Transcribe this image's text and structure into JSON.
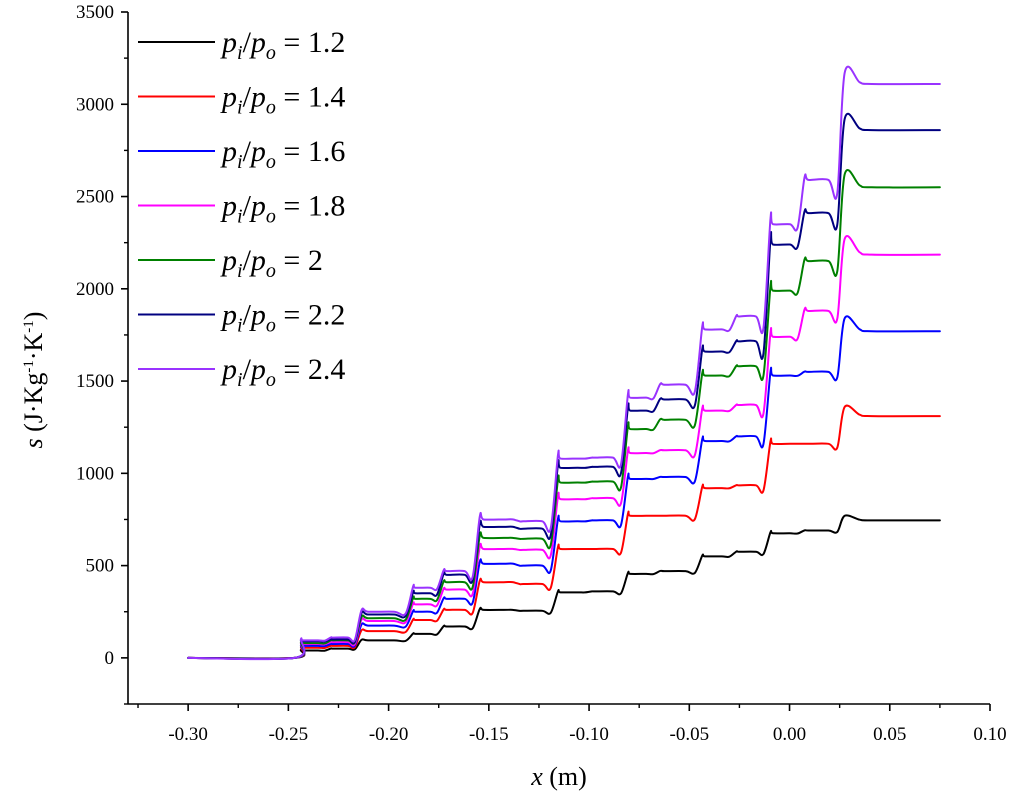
{
  "chart_data": {
    "type": "line",
    "xlabel": {
      "var": "x",
      "unit": "(m)"
    },
    "ylabel": {
      "var": "s",
      "unit_parts": [
        "(J·Kg",
        "-1",
        "·K",
        "-1",
        ")"
      ]
    },
    "xlim": [
      -0.33,
      0.1
    ],
    "ylim": [
      -250,
      3500
    ],
    "xticks": [
      -0.3,
      -0.25,
      -0.2,
      -0.15,
      -0.1,
      -0.05,
      0.0,
      0.05,
      0.1
    ],
    "xtick_labels": [
      "-0.30",
      "-0.25",
      "-0.20",
      "-0.15",
      "-0.10",
      "-0.05",
      "0.00",
      "0.05",
      "0.10"
    ],
    "yticks": [
      0,
      500,
      1000,
      1500,
      2000,
      2500,
      3000,
      3500
    ],
    "ytick_labels": [
      "0",
      "500",
      "1000",
      "1500",
      "2000",
      "2500",
      "3000",
      "3500"
    ],
    "grid": false,
    "legend_position": "top-left",
    "x_domain": [
      -0.3,
      0.075
    ],
    "steps": [
      {
        "xs": -0.246,
        "xe": -0.231,
        "dip": 0.45
      },
      {
        "xs": -0.231,
        "xe": -0.216,
        "dip": 0.35
      },
      {
        "xs": -0.216,
        "xe": -0.19,
        "dip": 0.3
      },
      {
        "xs": -0.19,
        "xe": -0.175,
        "dip": 0.3
      },
      {
        "xs": -0.175,
        "xe": -0.157,
        "dip": 0.4
      },
      {
        "xs": -0.157,
        "xe": -0.137,
        "dip": 0.25
      },
      {
        "xs": -0.137,
        "xe": -0.118,
        "dip": 0.4
      },
      {
        "xs": -0.118,
        "xe": -0.101,
        "dip": 0.25
      },
      {
        "xs": -0.101,
        "xe": -0.083,
        "dip": 0.4
      },
      {
        "xs": -0.083,
        "xe": -0.067,
        "dip": 0.25
      },
      {
        "xs": -0.067,
        "xe": -0.046,
        "dip": 0.45
      },
      {
        "xs": -0.046,
        "xe": -0.029,
        "dip": 0.25
      },
      {
        "xs": -0.029,
        "xe": -0.012,
        "dip": 0.45
      },
      {
        "xs": -0.012,
        "xe": 0.005,
        "dip": 0.3
      },
      {
        "xs": 0.005,
        "xe": 0.025,
        "dip": 0.5
      },
      {
        "xs": 0.025,
        "xe": 0.075,
        "dip": 0.0
      }
    ],
    "series": [
      {
        "name": {
          "lhs": "p",
          "lsub": "i",
          "rhs": "p",
          "rsub": "o",
          "value": "1.2"
        },
        "color": "#000000",
        "plateaus": [
          40,
          50,
          95,
          130,
          170,
          260,
          255,
          355,
          360,
          455,
          470,
          550,
          575,
          675,
          690,
          745
        ],
        "peak": 770
      },
      {
        "name": {
          "lhs": "p",
          "lsub": "i",
          "rhs": "p",
          "rsub": "o",
          "value": "1.4"
        },
        "color": "#ff0000",
        "plateaus": [
          55,
          65,
          145,
          205,
          260,
          410,
          400,
          590,
          590,
          770,
          770,
          920,
          935,
          1160,
          1160,
          1310
        ],
        "peak": 1360
      },
      {
        "name": {
          "lhs": "p",
          "lsub": "i",
          "rhs": "p",
          "rsub": "o",
          "value": "1.6"
        },
        "color": "#0000ff",
        "plateaus": [
          65,
          75,
          175,
          250,
          320,
          510,
          500,
          740,
          745,
          970,
          980,
          1175,
          1200,
          1530,
          1550,
          1770
        ],
        "peak": 1840
      },
      {
        "name": {
          "lhs": "p",
          "lsub": "i",
          "rhs": "p",
          "rsub": "o",
          "value": "1.8"
        },
        "color": "#ff00ff",
        "plateaus": [
          75,
          85,
          200,
          290,
          370,
          590,
          585,
          860,
          865,
          1110,
          1125,
          1340,
          1370,
          1740,
          1880,
          2185
        ],
        "peak": 2270
      },
      {
        "name": {
          "lhs": "p",
          "lsub": "i",
          "rhs": "p",
          "rsub": "o",
          "value": "2"
        },
        "color": "#008000",
        "plateaus": [
          80,
          95,
          215,
          320,
          410,
          650,
          645,
          950,
          955,
          1240,
          1290,
          1530,
          1580,
          1990,
          2150,
          2550
        ],
        "peak": 2620
      },
      {
        "name": {
          "lhs": "p",
          "lsub": "i",
          "rhs": "p",
          "rsub": "o",
          "value": "2.2"
        },
        "color": "#000080",
        "plateaus": [
          90,
          100,
          235,
          350,
          450,
          710,
          700,
          1030,
          1035,
          1340,
          1400,
          1660,
          1715,
          2240,
          2410,
          2860
        ],
        "peak": 2920
      },
      {
        "name": {
          "lhs": "p",
          "lsub": "i",
          "rhs": "p",
          "rsub": "o",
          "value": "2.4"
        },
        "color": "#9933ff",
        "plateaus": [
          95,
          110,
          250,
          380,
          470,
          750,
          740,
          1080,
          1085,
          1410,
          1480,
          1780,
          1850,
          2350,
          2590,
          3110
        ],
        "peak": 3170
      }
    ]
  }
}
